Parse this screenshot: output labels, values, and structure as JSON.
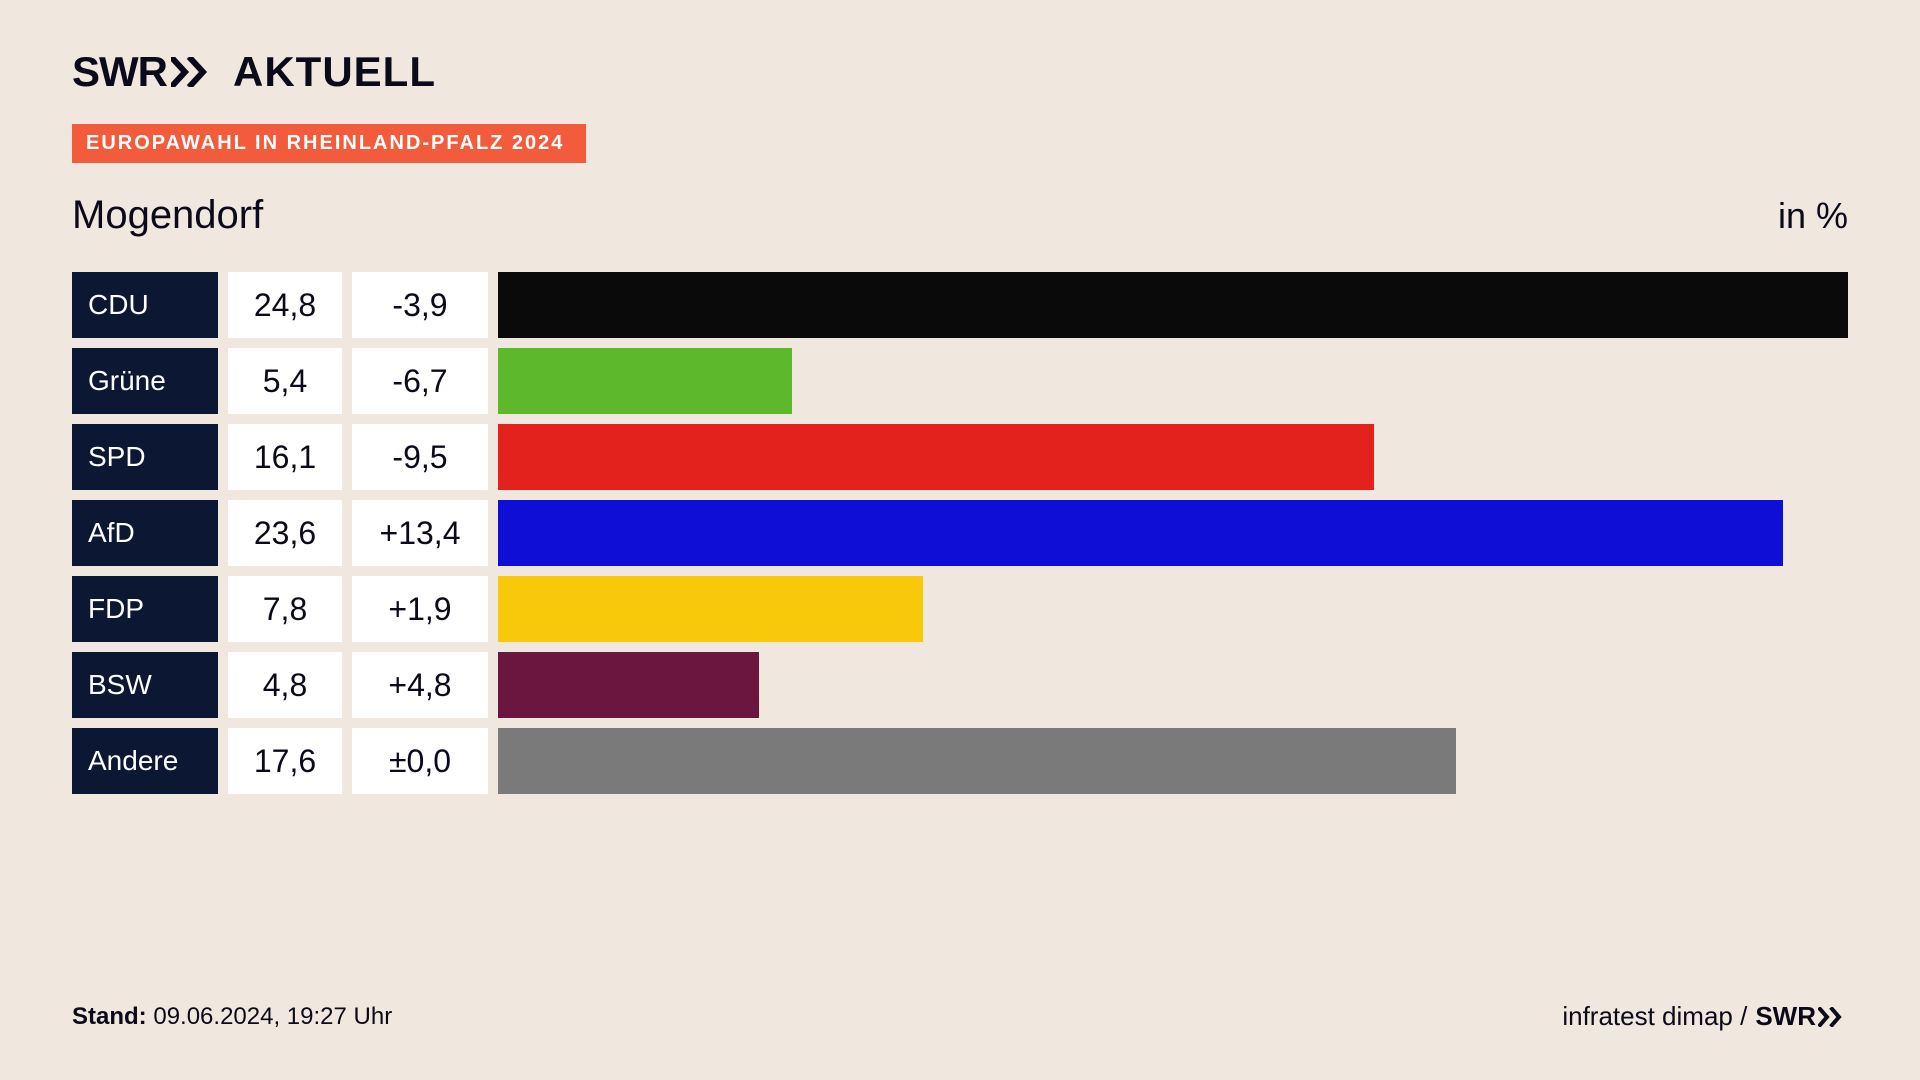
{
  "header": {
    "logo_text": "SWR",
    "logo_suffix": "AKTUELL",
    "badge": "EUROPAWAHL IN RHEINLAND-PFALZ 2024"
  },
  "chart": {
    "type": "bar",
    "location": "Mogendorf",
    "unit": "in %",
    "background_color": "#f0e8df",
    "party_cell_bg": "#0c1733",
    "party_cell_fg": "#ffffff",
    "value_cell_bg": "#ffffff",
    "value_cell_fg": "#0a0a1a",
    "max_value": 24.8,
    "rows": [
      {
        "party": "CDU",
        "value": "24,8",
        "num": 24.8,
        "change": "-3,9",
        "color": "#0a0a0a"
      },
      {
        "party": "Grüne",
        "value": "5,4",
        "num": 5.4,
        "change": "-6,7",
        "color": "#5eb82c"
      },
      {
        "party": "SPD",
        "value": "16,1",
        "num": 16.1,
        "change": "-9,5",
        "color": "#e3221e"
      },
      {
        "party": "AfD",
        "value": "23,6",
        "num": 23.6,
        "change": "+13,4",
        "color": "#0e0ed6"
      },
      {
        "party": "FDP",
        "value": "7,8",
        "num": 7.8,
        "change": "+1,9",
        "color": "#f8c80a"
      },
      {
        "party": "BSW",
        "value": "4,8",
        "num": 4.8,
        "change": "+4,8",
        "color": "#6b163e"
      },
      {
        "party": "Andere",
        "value": "17,6",
        "num": 17.6,
        "change": "±0,0",
        "color": "#7a7a7a"
      }
    ]
  },
  "footer": {
    "stand_label": "Stand:",
    "stand_value": " 09.06.2024, 19:27 Uhr",
    "credit_prefix": "infratest dimap / ",
    "credit_logo": "SWR"
  }
}
